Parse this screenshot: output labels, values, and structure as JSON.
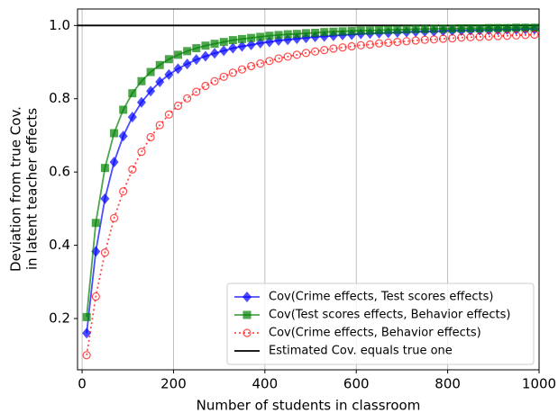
{
  "chart_data": {
    "type": "line",
    "xlabel": "Number of students in classroom",
    "ylabel": [
      "Deviation from true Cov.",
      "in latent teacher effects"
    ],
    "x": [
      10,
      30,
      50,
      70,
      90,
      110,
      130,
      150,
      170,
      190,
      210,
      230,
      250,
      270,
      290,
      310,
      330,
      350,
      370,
      390,
      410,
      430,
      450,
      470,
      490,
      510,
      530,
      550,
      570,
      590,
      610,
      630,
      650,
      670,
      690,
      710,
      730,
      750,
      770,
      790,
      810,
      830,
      850,
      870,
      890,
      910,
      930,
      950,
      970,
      990
    ],
    "series": [
      {
        "name": "Cov(Crime effects, Test scores effects)",
        "color": "#0000ff",
        "marker": "diamond",
        "linestyle": "solid",
        "values": [
          0.16,
          0.383,
          0.527,
          0.627,
          0.698,
          0.75,
          0.79,
          0.821,
          0.846,
          0.866,
          0.882,
          0.895,
          0.907,
          0.916,
          0.924,
          0.931,
          0.938,
          0.943,
          0.947,
          0.952,
          0.955,
          0.959,
          0.961,
          0.964,
          0.966,
          0.969,
          0.97,
          0.972,
          0.974,
          0.975,
          0.977,
          0.978,
          0.979,
          0.98,
          0.981,
          0.982,
          0.983,
          0.984,
          0.984,
          0.985,
          0.986,
          0.986,
          0.987,
          0.987,
          0.988,
          0.988,
          0.989,
          0.989,
          0.99,
          0.99
        ]
      },
      {
        "name": "Cov(Test scores effects, Behavior effects)",
        "color": "#008000",
        "marker": "square",
        "linestyle": "solid",
        "values": [
          0.204,
          0.461,
          0.611,
          0.706,
          0.77,
          0.815,
          0.848,
          0.873,
          0.892,
          0.908,
          0.92,
          0.93,
          0.938,
          0.945,
          0.95,
          0.955,
          0.96,
          0.963,
          0.966,
          0.969,
          0.972,
          0.974,
          0.976,
          0.977,
          0.979,
          0.98,
          0.982,
          0.983,
          0.984,
          0.985,
          0.986,
          0.986,
          0.987,
          0.988,
          0.988,
          0.989,
          0.99,
          0.99,
          0.991,
          0.991,
          0.991,
          0.992,
          0.992,
          0.992,
          0.993,
          0.993,
          0.993,
          0.994,
          0.994,
          0.994
        ]
      },
      {
        "name": "Cov(Crime effects, Behavior effects)",
        "color": "#ff0000",
        "marker": "open-circle",
        "linestyle": "dotted",
        "values": [
          0.1,
          0.26,
          0.38,
          0.474,
          0.547,
          0.607,
          0.655,
          0.695,
          0.728,
          0.757,
          0.781,
          0.801,
          0.819,
          0.835,
          0.848,
          0.86,
          0.871,
          0.88,
          0.889,
          0.896,
          0.903,
          0.91,
          0.915,
          0.92,
          0.925,
          0.929,
          0.933,
          0.937,
          0.94,
          0.943,
          0.946,
          0.948,
          0.951,
          0.953,
          0.955,
          0.957,
          0.959,
          0.961,
          0.962,
          0.964,
          0.965,
          0.967,
          0.968,
          0.969,
          0.97,
          0.971,
          0.972,
          0.973,
          0.974,
          0.975
        ]
      }
    ],
    "reference_lines": [
      {
        "name": "Estimated Cov. equals true one",
        "color": "#000000",
        "value": 1
      }
    ],
    "alpha": 0.7,
    "xlim": [
      -10,
      1000
    ],
    "xticks": [
      0,
      200,
      400,
      600,
      800,
      1000
    ],
    "ylim": [
      0.06,
      1.045
    ],
    "yticks": [
      0.2,
      0.4,
      0.6,
      0.8,
      {
        "value": 1,
        "label": "1.0"
      }
    ],
    "grid": "x",
    "legend": "lower right"
  }
}
